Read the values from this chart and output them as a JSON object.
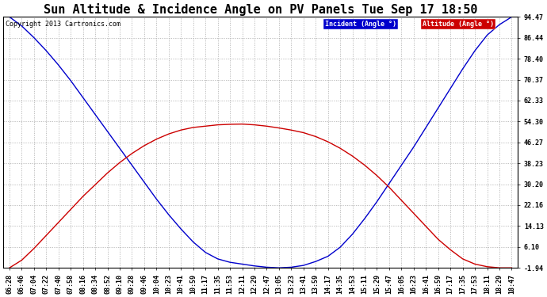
{
  "title": "Sun Altitude & Incidence Angle on PV Panels Tue Sep 17 18:50",
  "copyright": "Copyright 2013 Cartronics.com",
  "legend_incident": "Incident (Angle °)",
  "legend_altitude": "Altitude (Angle °)",
  "incident_color": "#0000cc",
  "altitude_color": "#cc0000",
  "legend_incident_bg": "#0000cc",
  "legend_altitude_bg": "#cc0000",
  "background_color": "#ffffff",
  "grid_color": "#aaaaaa",
  "yticks": [
    -1.94,
    6.1,
    14.13,
    22.16,
    30.2,
    38.23,
    46.27,
    54.3,
    62.33,
    70.37,
    78.4,
    86.44,
    94.47
  ],
  "ylim_min": -1.94,
  "ylim_max": 94.47,
  "xtick_labels": [
    "06:28",
    "06:46",
    "07:04",
    "07:22",
    "07:40",
    "07:58",
    "08:16",
    "08:34",
    "08:52",
    "09:10",
    "09:28",
    "09:46",
    "10:04",
    "10:23",
    "10:41",
    "10:59",
    "11:17",
    "11:35",
    "11:53",
    "12:11",
    "12:29",
    "12:47",
    "13:05",
    "13:23",
    "13:41",
    "13:59",
    "14:17",
    "14:35",
    "14:53",
    "15:11",
    "15:29",
    "15:47",
    "16:05",
    "16:23",
    "16:41",
    "16:59",
    "17:17",
    "17:35",
    "17:53",
    "18:11",
    "18:29",
    "18:47"
  ],
  "incident_y": [
    94.47,
    91.0,
    86.5,
    81.5,
    76.0,
    70.0,
    63.5,
    57.0,
    50.5,
    44.0,
    37.5,
    31.0,
    24.5,
    18.5,
    13.0,
    8.0,
    4.0,
    1.5,
    0.2,
    -0.5,
    -1.2,
    -1.7,
    -1.94,
    -1.7,
    -1.0,
    0.5,
    2.5,
    6.0,
    11.0,
    17.0,
    23.5,
    30.5,
    37.5,
    44.5,
    52.0,
    59.5,
    67.0,
    74.5,
    81.5,
    87.5,
    91.5,
    94.47
  ],
  "altitude_y": [
    -1.94,
    1.0,
    5.5,
    10.5,
    15.5,
    20.5,
    25.5,
    30.0,
    34.5,
    38.5,
    42.0,
    45.0,
    47.5,
    49.5,
    51.0,
    52.0,
    52.5,
    53.0,
    53.2,
    53.3,
    53.0,
    52.5,
    51.8,
    51.0,
    50.0,
    48.5,
    46.5,
    44.0,
    41.0,
    37.5,
    33.5,
    29.0,
    24.0,
    19.0,
    14.0,
    9.0,
    5.0,
    1.5,
    -0.5,
    -1.5,
    -1.94,
    -1.94
  ],
  "title_fontsize": 11,
  "tick_fontsize": 6,
  "copyright_fontsize": 6
}
